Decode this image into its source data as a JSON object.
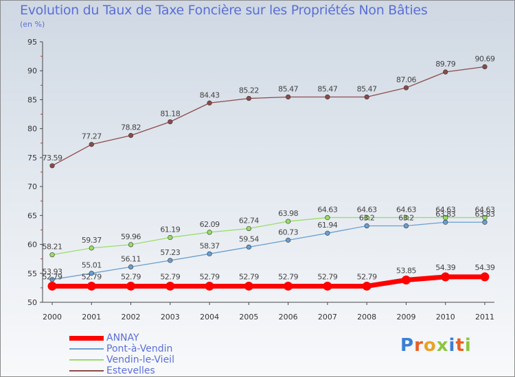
{
  "title": "Evolution du Taux de Taxe Foncière sur les Propriétés Non Bâties",
  "unit": "(en %)",
  "logo": {
    "text": "Proxiti",
    "letters": [
      {
        "char": "P",
        "color": "#3a7fd5"
      },
      {
        "char": "r",
        "color": "#e85f25"
      },
      {
        "char": "o",
        "color": "#e8a325"
      },
      {
        "char": "x",
        "color": "#8cc63f"
      },
      {
        "char": "i",
        "color": "#3a7fd5"
      },
      {
        "char": "t",
        "color": "#e85f25"
      },
      {
        "char": "i",
        "color": "#8cc63f"
      }
    ]
  },
  "chart_data": {
    "type": "line",
    "x": [
      "2000",
      "2001",
      "2002",
      "2003",
      "2004",
      "2005",
      "2006",
      "2007",
      "2008",
      "2009",
      "2010",
      "2011"
    ],
    "ylim": [
      50,
      95
    ],
    "yticks": [
      50,
      55,
      60,
      65,
      70,
      75,
      80,
      85,
      90,
      95
    ],
    "grid": false,
    "legend_position": "bottom-left",
    "series": [
      {
        "name": "ANNAY",
        "color": "#ff0000",
        "values": [
          52.79,
          52.79,
          52.79,
          52.79,
          52.79,
          52.79,
          52.79,
          52.79,
          52.79,
          53.85,
          54.39,
          54.39
        ],
        "labels": [
          "52.79",
          "52.79",
          "52.79",
          "52.79",
          "52.79",
          "52.79",
          "52.79",
          "52.79",
          "52.79",
          "53.85",
          "54.39",
          "54.39"
        ]
      },
      {
        "name": "Pont-à-Vendin",
        "color": "#6a9fd0",
        "values": [
          53.93,
          55.01,
          56.11,
          57.23,
          58.37,
          59.54,
          60.73,
          61.94,
          63.2,
          63.2,
          63.83,
          63.83
        ],
        "labels": [
          "53.93",
          "55.01",
          "56.11",
          "57.23",
          "58.37",
          "59.54",
          "60.73",
          "61.94",
          "63.2",
          "63.2",
          "63.83",
          "63.83"
        ]
      },
      {
        "name": "Vendin-le-Vieil",
        "color": "#99dd66",
        "values": [
          58.21,
          59.37,
          59.96,
          61.19,
          62.09,
          62.74,
          63.98,
          64.63,
          64.63,
          64.63,
          64.63,
          64.63
        ],
        "labels": [
          "58.21",
          "59.37",
          "59.96",
          "61.19",
          "62.09",
          "62.74",
          "63.98",
          "64.63",
          "64.63",
          "64.63",
          "64.63",
          "64.63"
        ]
      },
      {
        "name": "Estevelles",
        "color": "#8b4a4a",
        "values": [
          73.59,
          77.27,
          78.82,
          81.18,
          84.43,
          85.22,
          85.47,
          85.47,
          85.47,
          87.06,
          89.79,
          90.69
        ],
        "labels": [
          "73.59",
          "77.27",
          "78.82",
          "81.18",
          "84.43",
          "85.22",
          "85.47",
          "85.47",
          "85.47",
          "87.06",
          "89.79",
          "90.69"
        ]
      }
    ]
  }
}
